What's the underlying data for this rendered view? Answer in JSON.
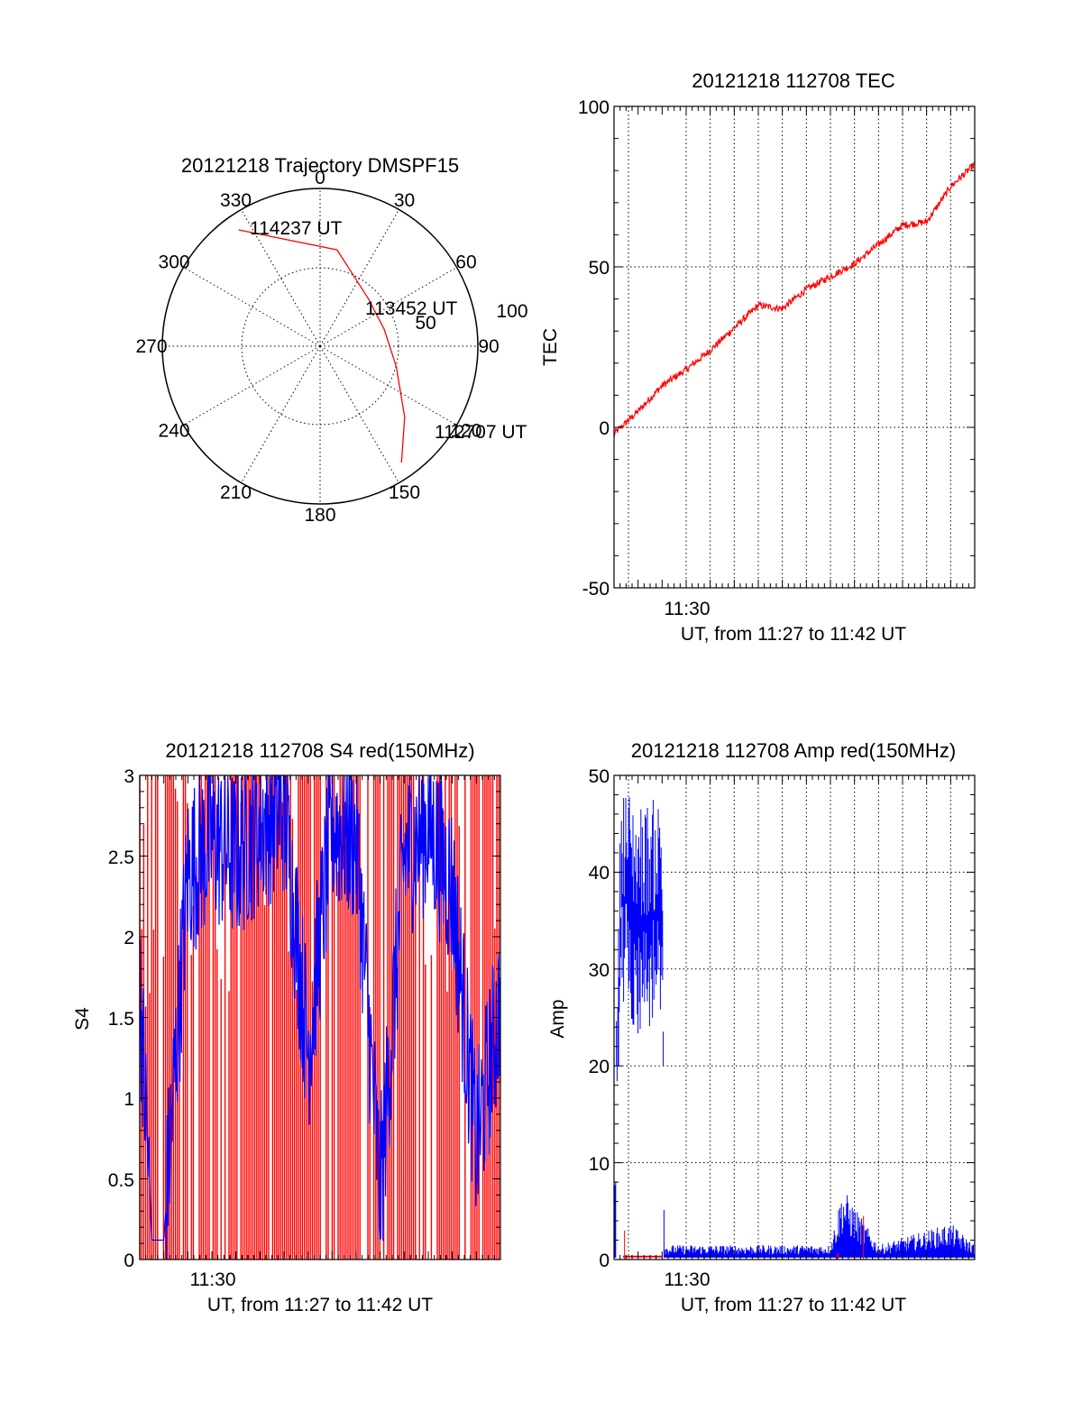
{
  "colors": {
    "red_trace": "#ff0000",
    "blue_trace": "#0000ff",
    "axes": "#000000"
  },
  "chart_data": [
    {
      "type": "polar",
      "title": "20121218 Trajectory DMSPF15",
      "angle_labels": [
        "0",
        "30",
        "60",
        "90",
        "120",
        "150",
        "180",
        "210",
        "240",
        "270",
        "300",
        "330"
      ],
      "radial_labels": [
        "50",
        "100"
      ],
      "rlim": [
        0,
        100
      ],
      "track": {
        "name": "trajectory",
        "points": [
          {
            "az": 145,
            "r": 90
          },
          {
            "az": 130,
            "r": 70
          },
          {
            "az": 105,
            "r": 50
          },
          {
            "az": 75,
            "r": 42
          },
          {
            "az": 45,
            "r": 43
          },
          {
            "az": 10,
            "r": 62
          },
          {
            "az": 325,
            "r": 90
          }
        ]
      },
      "annotations": [
        "114237 UT",
        "113452 UT",
        "112707 UT"
      ]
    },
    {
      "type": "line",
      "title": "20121218 112708 TEC",
      "xlabel": "UT, from 11:27 to 11:42 UT",
      "ylabel": "TEC",
      "xlim": [
        "11:27",
        "11:42"
      ],
      "ylim": [
        -50,
        100
      ],
      "x_ticklabels": [
        "11:30"
      ],
      "y_ticklabels": [
        "-50",
        "0",
        "50",
        "100"
      ],
      "grid": true,
      "series": [
        {
          "color": "red",
          "x": [
            "11:27",
            "11:28",
            "11:29",
            "11:30",
            "11:31",
            "11:32",
            "11:33",
            "11:34",
            "11:35",
            "11:36",
            "11:37",
            "11:38",
            "11:39",
            "11:40",
            "11:41",
            "11:42"
          ],
          "values": [
            -2,
            5,
            13,
            18,
            24,
            31,
            38,
            37,
            43,
            47,
            51,
            57,
            63,
            64,
            75,
            82
          ]
        }
      ]
    },
    {
      "type": "line",
      "title": "20121218 112708 S4 red(150MHz)",
      "xlabel": "UT, from 11:27 to 11:42 UT",
      "ylabel": "S4",
      "xlim": [
        "11:27",
        "11:42"
      ],
      "ylim": [
        0,
        3
      ],
      "x_ticklabels": [
        "11:30"
      ],
      "y_ticklabels": [
        "0",
        "0.5",
        "1",
        "1.5",
        "2",
        "2.5",
        "3"
      ],
      "grid": true,
      "series": [
        {
          "color": "red",
          "description_values": "dense vertical spikes between 0 and 3 across the whole interval"
        },
        {
          "color": "blue",
          "x": [
            "11:27",
            "11:27.5",
            "11:28",
            "11:29",
            "11:30",
            "11:31",
            "11:32",
            "11:33",
            "11:34",
            "11:35",
            "11:36",
            "11:37",
            "11:38",
            "11:39",
            "11:40",
            "11:41",
            "11:42"
          ],
          "values": [
            1.7,
            0.12,
            0.12,
            2.4,
            2.6,
            2.5,
            2.7,
            2.8,
            1.3,
            2.7,
            2.6,
            0.4,
            2.5,
            2.7,
            2.3,
            0.7,
            1.6
          ]
        }
      ]
    },
    {
      "type": "line",
      "title": "20121218 112708 Amp red(150MHz)",
      "xlabel": "UT, from 11:27 to 11:42 UT",
      "ylabel": "Amp",
      "xlim": [
        "11:27",
        "11:42"
      ],
      "ylim": [
        0,
        50
      ],
      "x_ticklabels": [
        "11:30"
      ],
      "y_ticklabels": [
        "0",
        "10",
        "20",
        "30",
        "40",
        "50"
      ],
      "grid": true,
      "series": [
        {
          "color": "blue",
          "x": [
            "11:27",
            "11:27.3",
            "11:28",
            "11:29",
            "11:29.1",
            "11:33",
            "11:36",
            "11:36.5",
            "11:38",
            "11:41",
            "11:42"
          ],
          "values": [
            1,
            38,
            35,
            36,
            1,
            1,
            1,
            5,
            1,
            2.5,
            1
          ]
        },
        {
          "color": "red",
          "x": [
            "11:27",
            "11:28",
            "11:36",
            "11:37"
          ],
          "values": [
            0,
            3,
            0,
            4.5
          ]
        }
      ]
    }
  ]
}
